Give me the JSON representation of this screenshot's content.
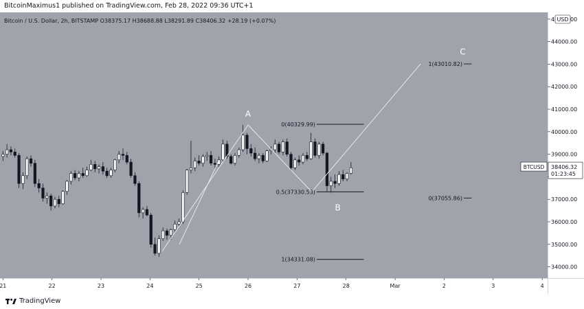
{
  "header": {
    "publish_text": "BitcoinMaximus1 published on TradingView.com, Feb 28, 2022 09:36 UTC+1"
  },
  "footer": {
    "brand": "TradingView"
  },
  "symbol_info": {
    "name": "Bitcoin / U.S. Dollar, 2h, BITSTAMP",
    "o_label": "O",
    "o_value": "38375.17",
    "h_label": "H",
    "h_value": "38688.88",
    "l_label": "L",
    "l_value": "38291.89",
    "c_label": "C",
    "c_value": "38406.32",
    "change": "+28.19 (+0.07%)"
  },
  "colors": {
    "background": "#a0a3ab",
    "up": "#ffffff",
    "down": "#131722",
    "wick": "#131722",
    "axis_text": "#131722",
    "annotation": "#ffffff",
    "line": "#e8e9ec",
    "price_tag": "#ffffff"
  },
  "chart_data": {
    "type": "candlestick",
    "ylim": [
      33500,
      45300
    ],
    "y_ticks": [
      {
        "value": 34000,
        "label": "34000.00"
      },
      {
        "value": 35000,
        "label": "35000.00"
      },
      {
        "value": 36000,
        "label": "36000.00"
      },
      {
        "value": 37000,
        "label": "37000.00"
      },
      {
        "value": 38000,
        "label": "38000.00"
      },
      {
        "value": 39000,
        "label": "39000.00"
      },
      {
        "value": 40000,
        "label": "40000.00"
      },
      {
        "value": 41000,
        "label": "41000.00"
      },
      {
        "value": 42000,
        "label": "42000.00"
      },
      {
        "value": 43000,
        "label": "43000.00"
      },
      {
        "value": 44000,
        "label": "44000.00"
      },
      {
        "value": 45000,
        "label": "45000.00"
      }
    ],
    "currency_label": "USD",
    "x_ticks": [
      {
        "x": -0.4,
        "label": "21"
      },
      {
        "x": 0.6,
        "label": "22"
      },
      {
        "x": 1.6,
        "label": "23"
      },
      {
        "x": 2.6,
        "label": "24"
      },
      {
        "x": 3.6,
        "label": "25"
      },
      {
        "x": 4.6,
        "label": "26"
      },
      {
        "x": 5.6,
        "label": "27"
      },
      {
        "x": 6.6,
        "label": "28"
      },
      {
        "x": 7.6,
        "label": "Mar"
      },
      {
        "x": 8.6,
        "label": "2"
      },
      {
        "x": 9.6,
        "label": "3"
      },
      {
        "x": 10.6,
        "label": "4"
      }
    ],
    "candles": [
      [
        38900,
        39150,
        38700,
        39000
      ],
      [
        39000,
        39450,
        38850,
        39200
      ],
      [
        39200,
        39350,
        38950,
        39100
      ],
      [
        39100,
        39250,
        38850,
        38950
      ],
      [
        38950,
        39050,
        37500,
        37700
      ],
      [
        37700,
        38200,
        37450,
        38050
      ],
      [
        38050,
        38900,
        37900,
        38800
      ],
      [
        38800,
        38950,
        38450,
        38600
      ],
      [
        38600,
        38750,
        37550,
        37700
      ],
      [
        37700,
        37900,
        37300,
        37500
      ],
      [
        37500,
        37700,
        36900,
        37050
      ],
      [
        37050,
        37300,
        36800,
        37150
      ],
      [
        37150,
        37250,
        36500,
        36700
      ],
      [
        36700,
        37100,
        36600,
        37000
      ],
      [
        37000,
        37150,
        36650,
        36800
      ],
      [
        36800,
        37400,
        36750,
        37350
      ],
      [
        37350,
        37850,
        37200,
        37800
      ],
      [
        37800,
        38250,
        37650,
        38150
      ],
      [
        38150,
        38300,
        37850,
        37950
      ],
      [
        37950,
        38250,
        37800,
        38150
      ],
      [
        38150,
        38400,
        37950,
        38050
      ],
      [
        38050,
        38450,
        38000,
        38300
      ],
      [
        38300,
        38750,
        38250,
        38550
      ],
      [
        38550,
        38700,
        38200,
        38350
      ],
      [
        38350,
        38550,
        38150,
        38450
      ],
      [
        38450,
        38650,
        38100,
        38250
      ],
      [
        38250,
        38400,
        37950,
        38050
      ],
      [
        38050,
        38400,
        37950,
        38300
      ],
      [
        38300,
        38800,
        38200,
        38750
      ],
      [
        38750,
        39150,
        38600,
        39000
      ],
      [
        39000,
        39250,
        38750,
        38950
      ],
      [
        38950,
        39100,
        38550,
        38650
      ],
      [
        38650,
        38800,
        37950,
        38050
      ],
      [
        38050,
        38200,
        37600,
        37700
      ],
      [
        37700,
        37800,
        36200,
        36400
      ],
      [
        36400,
        36650,
        36150,
        36550
      ],
      [
        36550,
        36700,
        36250,
        36300
      ],
      [
        36300,
        36400,
        34850,
        35000
      ],
      [
        35000,
        35300,
        34500,
        34600
      ],
      [
        34600,
        35400,
        34450,
        35250
      ],
      [
        35250,
        35750,
        35150,
        35600
      ],
      [
        35600,
        35700,
        35200,
        35400
      ],
      [
        35400,
        35700,
        35200,
        35650
      ],
      [
        35650,
        36050,
        35500,
        35900
      ],
      [
        35900,
        36150,
        35800,
        36000
      ],
      [
        36000,
        37400,
        35900,
        37300
      ],
      [
        37300,
        38350,
        37200,
        38300
      ],
      [
        38300,
        39600,
        38150,
        38400
      ],
      [
        38400,
        38850,
        38250,
        38700
      ],
      [
        38700,
        38950,
        38500,
        38600
      ],
      [
        38600,
        39000,
        38450,
        38900
      ],
      [
        38900,
        39100,
        38700,
        38950
      ],
      [
        38950,
        39150,
        38500,
        38600
      ],
      [
        38600,
        38800,
        38350,
        38550
      ],
      [
        38550,
        38900,
        38450,
        38750
      ],
      [
        38750,
        39650,
        38650,
        39450
      ],
      [
        39450,
        39600,
        38800,
        38900
      ],
      [
        38900,
        39000,
        38550,
        38600
      ],
      [
        38600,
        39050,
        38500,
        38950
      ],
      [
        38950,
        39300,
        38850,
        39200
      ],
      [
        39200,
        40300,
        39100,
        39850
      ],
      [
        39850,
        39950,
        39000,
        39250
      ],
      [
        39250,
        39450,
        38900,
        39050
      ],
      [
        39050,
        39300,
        38700,
        38800
      ],
      [
        38800,
        39050,
        38600,
        38950
      ],
      [
        38950,
        39050,
        38600,
        38700
      ],
      [
        38700,
        39200,
        38650,
        39150
      ],
      [
        39150,
        39350,
        39000,
        39200
      ],
      [
        39200,
        39650,
        39050,
        39450
      ],
      [
        39450,
        39550,
        39000,
        39100
      ],
      [
        39100,
        39650,
        38950,
        39550
      ],
      [
        39550,
        39700,
        38900,
        39000
      ],
      [
        39000,
        39100,
        38300,
        38400
      ],
      [
        38400,
        38850,
        38300,
        38750
      ],
      [
        38750,
        38950,
        38500,
        38650
      ],
      [
        38650,
        39050,
        38550,
        38950
      ],
      [
        38950,
        39100,
        38700,
        38800
      ],
      [
        38800,
        39950,
        38750,
        39550
      ],
      [
        39550,
        39700,
        38850,
        38950
      ],
      [
        38950,
        39550,
        38800,
        39450
      ],
      [
        39450,
        39550,
        38950,
        39050
      ],
      [
        39050,
        39100,
        37350,
        37600
      ],
      [
        37600,
        38000,
        37300,
        37800
      ],
      [
        37800,
        38100,
        37500,
        37700
      ],
      [
        37700,
        38250,
        37600,
        38100
      ],
      [
        38100,
        38300,
        37800,
        37900
      ],
      [
        37900,
        38200,
        37800,
        38150
      ],
      [
        38150,
        38650,
        38100,
        38400
      ]
    ],
    "drawn_lines": [
      [
        [
          2.85,
          34700
        ],
        [
          4.6,
          40300
        ],
        [
          5.9,
          37330
        ],
        [
          8.12,
          43010
        ]
      ],
      [
        [
          3.2,
          35000
        ],
        [
          4.0,
          38700
        ]
      ]
    ],
    "fib_levels": [
      {
        "label": "0(40329.99)",
        "value": 40329.99,
        "x_start": 6.0,
        "x_end": 6.96
      },
      {
        "label": "0.5(37330.53)",
        "value": 37330.53,
        "x_start": 6.0,
        "x_end": 6.96
      },
      {
        "label": "1(34331.08)",
        "value": 34331.08,
        "x_start": 6.0,
        "x_end": 6.96
      },
      {
        "label": "1(43010.82)",
        "value": 43010.82,
        "x_start": 9.0,
        "x_end": 9.16
      },
      {
        "label": "0(37055.86)",
        "value": 37055.86,
        "x_start": 9.0,
        "x_end": 9.16
      }
    ],
    "wave_labels": [
      {
        "text": "A",
        "x": 4.6,
        "y": 40660
      },
      {
        "text": "B",
        "x": 6.43,
        "y": 36500
      },
      {
        "text": "C",
        "x": 8.98,
        "y": 43430
      }
    ],
    "last_price": {
      "symbol": "BTCUSD",
      "value": "38406.32",
      "countdown": "01:23:45"
    }
  }
}
